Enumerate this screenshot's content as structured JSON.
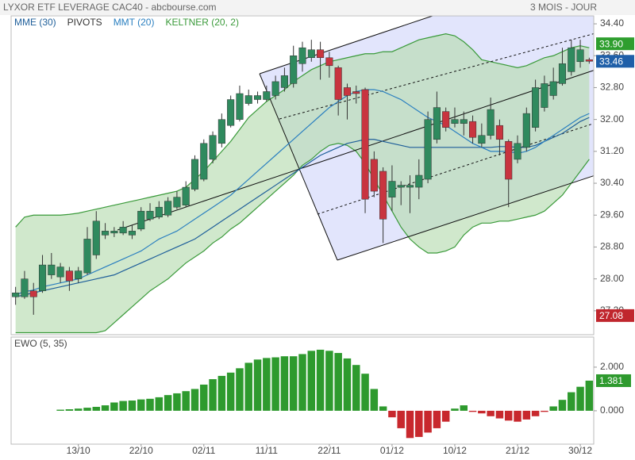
{
  "header": {
    "title": "LYXOR ETF LEVERAGE CAC40 - abcbourse.com",
    "period": "3 MOIS - JOUR"
  },
  "chart_data": [
    {
      "type": "candlestick",
      "categories": [
        null,
        null,
        null,
        null,
        null,
        null,
        null,
        "13/10",
        null,
        null,
        null,
        null,
        null,
        null,
        "22/10",
        null,
        null,
        null,
        null,
        null,
        null,
        "02/11",
        null,
        null,
        null,
        null,
        null,
        null,
        "11/11",
        null,
        null,
        null,
        null,
        null,
        null,
        "22/11",
        null,
        null,
        null,
        null,
        null,
        null,
        "01/12",
        null,
        null,
        null,
        null,
        null,
        null,
        "10/12",
        null,
        null,
        null,
        null,
        null,
        null,
        "21/12",
        null,
        null,
        null,
        null,
        null,
        null,
        "30/12",
        null
      ],
      "open": [
        27.55,
        27.55,
        27.7,
        27.7,
        28.1,
        28.05,
        28.2,
        28.0,
        28.15,
        28.6,
        29.1,
        29.15,
        29.15,
        29.1,
        29.25,
        29.5,
        29.55,
        29.6,
        29.8,
        29.85,
        30.25,
        30.5,
        31.0,
        31.4,
        31.85,
        32.0,
        32.4,
        32.5,
        32.5,
        32.6,
        32.8,
        32.9,
        33.4,
        33.55,
        33.75,
        33.55,
        33.3,
        32.8,
        32.7,
        32.75,
        31.0,
        30.7,
        30.05,
        30.3,
        30.3,
        30.3,
        30.5,
        31.5,
        32.2,
        31.9,
        31.9,
        31.95,
        31.4,
        31.6,
        31.85,
        31.45,
        31.0,
        31.3,
        31.8,
        32.3,
        32.6,
        32.9,
        33.2,
        33.45,
        33.5
      ],
      "high": [
        27.8,
        28.2,
        27.9,
        28.6,
        28.65,
        28.4,
        28.3,
        28.3,
        29.3,
        29.7,
        29.4,
        29.3,
        29.45,
        29.35,
        29.8,
        29.9,
        29.95,
        30.05,
        30.2,
        30.45,
        31.1,
        31.5,
        31.7,
        32.15,
        32.6,
        32.85,
        32.75,
        32.7,
        32.85,
        33.1,
        33.3,
        33.85,
        33.95,
        34.0,
        33.95,
        33.7,
        33.35,
        32.9,
        32.85,
        32.8,
        31.2,
        30.8,
        30.85,
        30.45,
        30.6,
        31.0,
        32.2,
        32.7,
        32.3,
        32.3,
        32.2,
        32.1,
        31.9,
        32.55,
        32.0,
        31.5,
        31.6,
        32.3,
        33.0,
        33.1,
        33.3,
        33.8,
        34.0,
        34.0,
        33.55
      ],
      "low": [
        27.35,
        27.5,
        27.1,
        27.65,
        28.0,
        27.9,
        27.7,
        27.9,
        28.1,
        28.5,
        29.0,
        29.05,
        29.1,
        29.0,
        29.2,
        29.45,
        29.5,
        29.55,
        29.75,
        29.8,
        30.2,
        30.45,
        30.9,
        31.3,
        31.8,
        31.95,
        32.35,
        32.4,
        32.45,
        32.5,
        32.7,
        32.8,
        33.2,
        33.45,
        33.0,
        33.05,
        32.1,
        32.0,
        32.4,
        29.65,
        30.05,
        28.9,
        29.7,
        29.85,
        29.65,
        30.0,
        30.4,
        31.4,
        31.7,
        31.8,
        31.6,
        31.4,
        31.3,
        31.5,
        31.1,
        29.8,
        30.9,
        31.2,
        31.7,
        32.2,
        32.5,
        32.85,
        33.1,
        33.3,
        33.4
      ],
      "close": [
        27.65,
        28.0,
        27.55,
        28.35,
        28.35,
        28.3,
        27.95,
        28.2,
        29.0,
        29.45,
        29.2,
        29.2,
        29.3,
        29.2,
        29.7,
        29.7,
        29.8,
        29.95,
        30.05,
        30.3,
        31.0,
        31.4,
        31.6,
        32.0,
        32.5,
        32.65,
        32.6,
        32.6,
        32.7,
        32.95,
        33.1,
        33.6,
        33.8,
        33.75,
        33.55,
        33.35,
        32.5,
        32.6,
        32.65,
        30.0,
        30.2,
        29.5,
        30.45,
        30.35,
        30.35,
        30.6,
        32.0,
        32.3,
        31.8,
        32.0,
        32.0,
        31.55,
        31.6,
        32.25,
        31.5,
        30.5,
        31.4,
        32.15,
        32.8,
        32.9,
        32.95,
        33.4,
        33.8,
        33.75,
        33.46
      ],
      "up_color": "#2f8a5e",
      "down_color": "#c8343f",
      "series": [
        {
          "name": "MME (30)",
          "color": "#1f5f9a",
          "values": [
            27.55,
            27.6,
            27.65,
            27.7,
            27.75,
            27.8,
            27.85,
            27.9,
            27.95,
            28.0,
            28.05,
            28.1,
            28.2,
            28.3,
            28.4,
            28.5,
            28.6,
            28.7,
            28.8,
            28.9,
            29.0,
            29.15,
            29.3,
            29.45,
            29.6,
            29.75,
            29.9,
            30.05,
            30.2,
            30.35,
            30.5,
            30.65,
            30.8,
            30.95,
            31.1,
            31.2,
            31.3,
            31.4,
            31.45,
            31.5,
            31.5,
            31.45,
            31.4,
            31.35,
            31.3,
            31.3,
            31.3,
            31.3,
            31.3,
            31.3,
            31.3,
            31.3,
            31.3,
            31.3,
            31.32,
            31.32,
            31.3,
            31.3,
            31.35,
            31.45,
            31.55,
            31.65,
            31.8,
            31.95,
            32.05
          ]
        },
        {
          "name": "PIVOTS",
          "color": "#333333"
        },
        {
          "name": "MMT (20)",
          "color": "#2a7fc0",
          "values": [
            27.6,
            27.68,
            27.72,
            27.8,
            27.85,
            27.9,
            27.95,
            28.0,
            28.1,
            28.2,
            28.3,
            28.4,
            28.5,
            28.6,
            28.7,
            28.85,
            29.0,
            29.1,
            29.2,
            29.35,
            29.5,
            29.65,
            29.8,
            29.95,
            30.1,
            30.3,
            30.5,
            30.7,
            30.9,
            31.1,
            31.3,
            31.5,
            31.7,
            31.9,
            32.1,
            32.3,
            32.45,
            32.6,
            32.7,
            32.75,
            32.75,
            32.7,
            32.6,
            32.5,
            32.35,
            32.2,
            32.05,
            31.95,
            31.85,
            31.7,
            31.55,
            31.4,
            31.3,
            31.2,
            31.2,
            31.2,
            31.15,
            31.2,
            31.3,
            31.45,
            31.6,
            31.75,
            31.9,
            32.05,
            32.15
          ]
        },
        {
          "name": "KELTNER (20, 2)",
          "color": "#3a9a3a",
          "fill": "#b7dcb0",
          "upper": [
            29.3,
            29.55,
            29.6,
            29.6,
            29.6,
            29.6,
            29.62,
            29.65,
            29.7,
            29.75,
            29.8,
            29.85,
            29.9,
            29.95,
            30.0,
            30.05,
            30.1,
            30.15,
            30.2,
            30.3,
            30.5,
            30.7,
            30.95,
            31.2,
            31.45,
            31.75,
            32.05,
            32.25,
            32.45,
            32.6,
            32.75,
            32.95,
            33.1,
            33.25,
            33.35,
            33.45,
            33.5,
            33.55,
            33.6,
            33.65,
            33.65,
            33.7,
            33.7,
            33.8,
            33.9,
            34.0,
            34.05,
            34.1,
            34.15,
            34.1,
            33.95,
            33.75,
            33.5,
            33.45,
            33.4,
            33.35,
            33.3,
            33.35,
            33.45,
            33.55,
            33.6,
            33.7,
            33.8,
            33.85,
            33.8
          ],
          "lower": [
            26.65,
            26.65,
            26.65,
            26.65,
            26.65,
            26.65,
            26.65,
            26.65,
            26.65,
            26.65,
            26.7,
            26.9,
            27.1,
            27.3,
            27.5,
            27.7,
            27.85,
            28.0,
            28.2,
            28.4,
            28.55,
            28.7,
            28.9,
            29.05,
            29.25,
            29.4,
            29.6,
            29.8,
            30.0,
            30.2,
            30.4,
            30.6,
            30.85,
            31.0,
            31.2,
            31.35,
            31.4,
            31.35,
            31.2,
            30.9,
            30.5,
            30.1,
            29.7,
            29.3,
            29.0,
            28.8,
            28.65,
            28.65,
            28.7,
            28.8,
            29.1,
            29.3,
            29.4,
            29.4,
            29.45,
            29.45,
            29.5,
            29.55,
            29.6,
            29.7,
            29.9,
            30.1,
            30.4,
            30.7,
            31.0
          ]
        }
      ],
      "ylim": [
        26.6,
        34.6
      ],
      "yticks": [
        {
          "value": 27.2,
          "label": "27.20"
        },
        {
          "value": 28,
          "label": "28.00"
        },
        {
          "value": 28.8,
          "label": "28.80"
        },
        {
          "value": 29.6,
          "label": "29.60"
        },
        {
          "value": 30.4,
          "label": "30.40"
        },
        {
          "value": 31.2,
          "label": "31.20"
        },
        {
          "value": 32,
          "label": "32.00"
        },
        {
          "value": 32.8,
          "label": "32.80"
        },
        {
          "value": 33.6,
          "label": "33.60"
        },
        {
          "value": 34.4,
          "label": "34.40"
        }
      ],
      "price_badges": [
        {
          "value": 33.9,
          "label": "33.90",
          "color": "#2e9e2e"
        },
        {
          "value": 33.46,
          "color": "#1f5fa8"
        },
        {
          "value": 27.08,
          "color": "#c0262d"
        }
      ]
    },
    {
      "type": "bar",
      "title": "EWO (5, 35)",
      "pos_color": "#2e9a2e",
      "neg_color": "#c8282d",
      "values": [
        null,
        null,
        null,
        null,
        null,
        0.05,
        0.07,
        0.1,
        0.14,
        0.18,
        0.25,
        0.38,
        0.45,
        0.47,
        0.52,
        0.55,
        0.62,
        0.72,
        0.8,
        0.9,
        1.0,
        1.2,
        1.45,
        1.6,
        1.75,
        1.95,
        2.2,
        2.35,
        2.42,
        2.45,
        2.5,
        2.5,
        2.6,
        2.75,
        2.8,
        2.75,
        2.65,
        2.4,
        2.1,
        1.7,
        1.0,
        0.2,
        -0.3,
        -0.8,
        -1.25,
        -1.2,
        -1.0,
        -0.8,
        -0.5,
        0.1,
        0.25,
        -0.05,
        -0.12,
        -0.25,
        -0.35,
        -0.45,
        -0.5,
        -0.4,
        -0.25,
        -0.05,
        0.2,
        0.5,
        0.85,
        1.1,
        1.381
      ],
      "ylim": [
        -1.53,
        3.38
      ],
      "yticks": [
        {
          "value": 0,
          "label": "0.000"
        },
        {
          "value": 2,
          "label": "2.000"
        }
      ]
    }
  ]
}
